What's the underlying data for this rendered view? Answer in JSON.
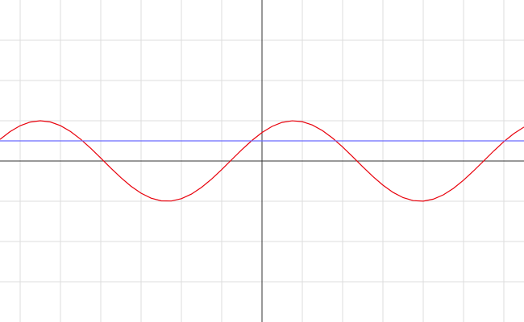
{
  "chart_data": {
    "type": "line",
    "xlim": [
      -6.5,
      6.5
    ],
    "ylim": [
      -4,
      4
    ],
    "xticks": [
      -6,
      -5,
      -4,
      -3,
      -2,
      -1,
      0,
      1,
      2,
      3,
      4,
      5,
      6
    ],
    "yticks": [
      -3,
      -2,
      -1,
      0,
      1,
      2,
      3
    ],
    "grid": true,
    "series": [
      {
        "color": "#e8000b",
        "x": [
          -6.5,
          -6.25,
          -6,
          -5.75,
          -5.5,
          -5.25,
          -5,
          -4.75,
          -4.5,
          -4.25,
          -4,
          -3.75,
          -3.5,
          -3.25,
          -3,
          -2.75,
          -2.5,
          -2.25,
          -2,
          -1.75,
          -1.5,
          -1.25,
          -1,
          -0.75,
          -0.5,
          -0.25,
          0,
          0.25,
          0.5,
          0.75,
          1,
          1.25,
          1.5,
          1.75,
          2,
          2.25,
          2.5,
          2.75,
          3,
          3.25,
          3.5,
          3.75,
          4,
          4.25,
          4.5,
          4.75,
          5,
          5.25,
          5.5,
          5.75,
          6,
          6.25,
          6.5
        ],
        "values": [
          0.538,
          0.73,
          0.877,
          0.968,
          1.0,
          0.97,
          0.879,
          0.733,
          0.542,
          0.317,
          0.073,
          -0.176,
          -0.414,
          -0.627,
          -0.8,
          -0.923,
          -0.99,
          -0.994,
          -0.937,
          -0.822,
          -0.655,
          -0.448,
          -0.213,
          0.035,
          0.282,
          0.51,
          0.707,
          0.86,
          0.96,
          0.999,
          0.977,
          0.894,
          0.755,
          0.57,
          0.349,
          0.106,
          -0.143,
          -0.384,
          -0.6,
          -0.779,
          -0.91,
          -0.984,
          -0.997,
          -0.948,
          -0.84,
          -0.68,
          -0.477,
          -0.245,
          0.002,
          0.25,
          0.481,
          0.683,
          0.843
        ]
      },
      {
        "color": "#6b6bff",
        "x": [
          -6.5,
          6.5
        ],
        "values": [
          0.5,
          0.5
        ]
      }
    ]
  }
}
